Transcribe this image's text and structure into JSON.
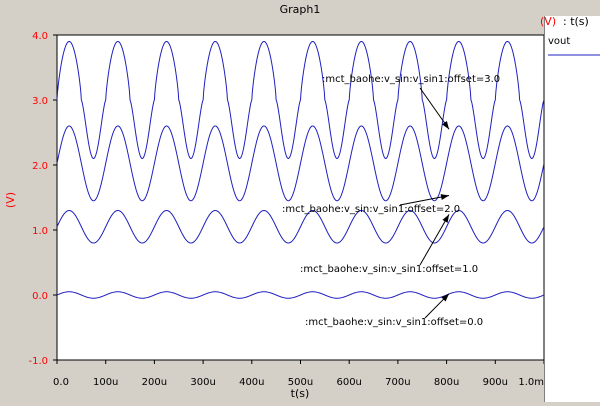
{
  "window": {
    "title": "Graph1"
  },
  "legend": {
    "unit_label": "(V)",
    "x_unit_label": ": t(s)",
    "entry": "vout",
    "line_color": "#2020c0"
  },
  "colors": {
    "background": "#d4d0c8",
    "plot_bg": "#ffffff",
    "y_axis_text": "#ff0000",
    "series": "#2020c0",
    "x_axis_text": "#000000"
  },
  "chart_data": {
    "type": "line",
    "title": "Graph1",
    "xlabel": "t(s)",
    "ylabel": "(V)",
    "xlim": [
      0,
      0.001
    ],
    "ylim": [
      -1.0,
      4.0
    ],
    "x_ticks": [
      0,
      0.0001,
      0.0002,
      0.0003,
      0.0004,
      0.0005,
      0.0006,
      0.0007,
      0.0008,
      0.0009,
      0.001
    ],
    "x_tick_labels": [
      "0.0",
      "100u",
      "200u",
      "300u",
      "400u",
      "500u",
      "600u",
      "700u",
      "800u",
      "900u",
      "1.0m"
    ],
    "y_ticks": [
      -1.0,
      0.0,
      1.0,
      2.0,
      3.0,
      4.0
    ],
    "y_tick_labels": [
      "-1.0",
      "0.0",
      "1.0",
      "2.0",
      "3.0",
      "4.0"
    ],
    "grid": false,
    "signal": {
      "frequency_hz": 10000,
      "periods_shown": 10
    },
    "series": [
      {
        "offset": 3.0,
        "min": 2.1,
        "max": 3.9
      },
      {
        "offset": 2.0,
        "min": 1.45,
        "max": 2.6
      },
      {
        "offset": 1.0,
        "min": 0.8,
        "max": 1.3
      },
      {
        "offset": 0.0,
        "min": -0.05,
        "max": 0.05
      }
    ],
    "annotations": [
      {
        "text": ":mct_baohe:v_sin:v_sin1:offset=3.0",
        "target": [
          0.000805,
          2.55
        ]
      },
      {
        "text": ":mct_baohe:v_sin:v_sin1:offset=2.0",
        "target": [
          0.000805,
          1.53
        ]
      },
      {
        "text": ":mct_baohe:v_sin:v_sin1:offset=1.0",
        "target": [
          0.000805,
          1.24
        ]
      },
      {
        "text": ":mct_baohe:v_sin:v_sin1:offset=0.0",
        "target": [
          0.000805,
          0.02
        ]
      }
    ]
  }
}
